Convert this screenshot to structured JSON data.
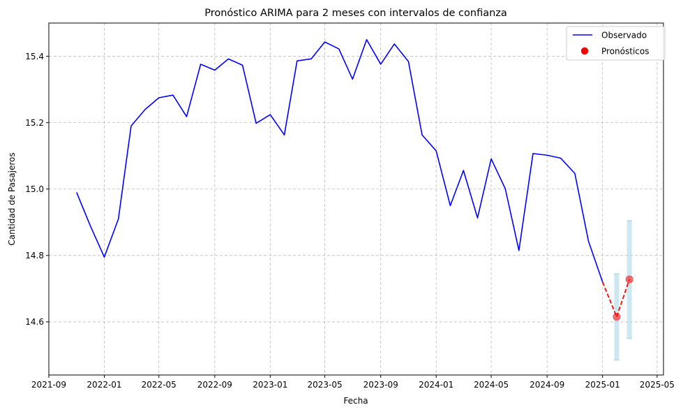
{
  "chart_data": {
    "type": "line",
    "title": "Pronóstico ARIMA para 2 meses con intervalos de confianza",
    "xlabel": "Fecha",
    "ylabel": "Cantidad de Pasajeros",
    "xlim": [
      "2021-09-01",
      "2025-05-15"
    ],
    "ylim": [
      14.44,
      15.5
    ],
    "x_ticks": [
      "2021-09",
      "2022-01",
      "2022-05",
      "2022-09",
      "2023-01",
      "2023-05",
      "2023-09",
      "2024-01",
      "2024-05",
      "2024-09",
      "2025-01",
      "2025-05"
    ],
    "y_ticks": [
      "14.6",
      "14.8",
      "15.0",
      "15.2",
      "15.4"
    ],
    "grid": true,
    "legend_position": "top-right",
    "series": [
      {
        "name": "Observado",
        "color": "#0000ff",
        "style": "solid",
        "x": [
          "2021-11-01",
          "2021-12-01",
          "2022-01-01",
          "2022-02-01",
          "2022-03-01",
          "2022-04-01",
          "2022-05-01",
          "2022-06-01",
          "2022-07-01",
          "2022-08-01",
          "2022-09-01",
          "2022-10-01",
          "2022-11-01",
          "2022-12-01",
          "2023-01-01",
          "2023-02-01",
          "2023-03-01",
          "2023-04-01",
          "2023-05-01",
          "2023-06-01",
          "2023-07-01",
          "2023-08-01",
          "2023-09-01",
          "2023-10-01",
          "2023-11-01",
          "2023-12-01",
          "2024-01-01",
          "2024-02-01",
          "2024-03-01",
          "2024-04-01",
          "2024-05-01",
          "2024-06-01",
          "2024-07-01",
          "2024-08-01",
          "2024-09-01",
          "2024-10-01",
          "2024-11-01",
          "2024-12-01",
          "2025-01-01"
        ],
        "y": [
          14.99,
          14.89,
          14.795,
          14.91,
          15.19,
          15.24,
          15.275,
          15.283,
          15.218,
          15.376,
          15.358,
          15.392,
          15.373,
          15.198,
          15.224,
          15.163,
          15.386,
          15.392,
          15.443,
          15.422,
          15.331,
          15.45,
          15.376,
          15.437,
          15.384,
          15.163,
          15.115,
          14.95,
          15.056,
          14.913,
          15.091,
          15.001,
          14.815,
          15.107,
          15.102,
          15.093,
          15.047,
          14.843,
          14.72
        ]
      },
      {
        "name": "Pronósticos",
        "color": "#ff0000",
        "style": "dashed",
        "x": [
          "2025-01-01",
          "2025-02-01",
          "2025-03-01"
        ],
        "y": [
          14.72,
          14.615,
          14.728
        ],
        "points": [
          {
            "x": "2025-02-01",
            "y": 14.615
          },
          {
            "x": "2025-03-01",
            "y": 14.728
          }
        ]
      }
    ],
    "intervals": [
      {
        "x": "2025-02-01",
        "lower": 14.485,
        "upper": 14.745
      },
      {
        "x": "2025-03-01",
        "lower": 14.55,
        "upper": 14.905
      }
    ],
    "colors": {
      "observed": "#0000ff",
      "forecast": "#ff0000",
      "interval": "#add8e6"
    }
  }
}
